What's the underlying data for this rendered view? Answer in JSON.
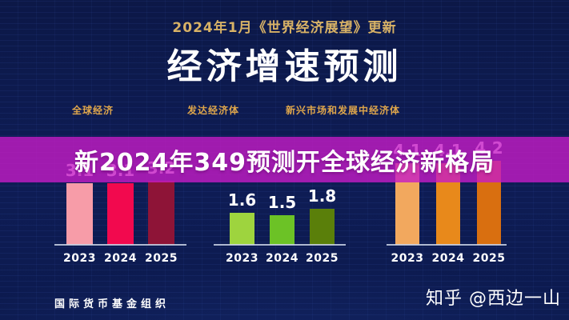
{
  "header": {
    "subtitle": "2024年1月《世界经济展望》更新",
    "title": "经济增速预测"
  },
  "banner": {
    "text": "新2024年349预测开全球经济新格局"
  },
  "footer": {
    "source": "国际货币基金组织",
    "credit": "知乎 @西边一山"
  },
  "colors": {
    "background": "#0d1a52",
    "banner_overlay": "rgba(198,28,198,0.80)",
    "gold_subtitle": "#d8b266",
    "gold_headers": "#dfa64b",
    "axis": "#cbd3e6",
    "value_label": "#ffffff"
  },
  "chart_data": {
    "type": "bar",
    "title": "经济增速预测",
    "subtitle": "2024年1月《世界经济展望》更新",
    "unit": "%",
    "categories": [
      "2023",
      "2024",
      "2025"
    ],
    "series": [
      {
        "name": "全球经济",
        "values": [
          3.1,
          3.1,
          3.2
        ],
        "colors": [
          "#f79ca8",
          "#f2094e",
          "#8e1437"
        ]
      },
      {
        "name": "发达经济体",
        "values": [
          1.6,
          1.5,
          1.8
        ],
        "colors": [
          "#9ed43e",
          "#6cc226",
          "#5a7f0a"
        ]
      },
      {
        "name": "新兴市场和发展中经济体",
        "values": [
          4.1,
          4.1,
          4.2
        ],
        "colors": [
          "#f2a85e",
          "#e8891b",
          "#d96f10"
        ]
      }
    ],
    "ylim": [
      0,
      4.5
    ],
    "value_labels": true,
    "grid": false,
    "legend_position": "top-as-headers",
    "source": "国际货币基金组织"
  }
}
